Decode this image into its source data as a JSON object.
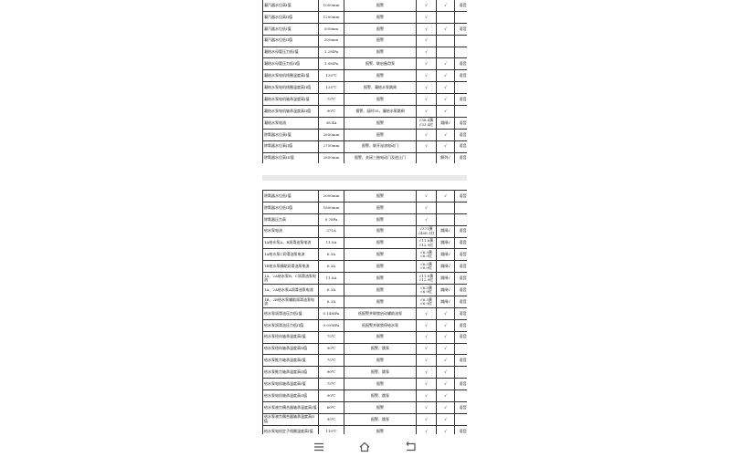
{
  "page1_rows": [
    [
      "凝汽器水位高I值",
      "1000mm",
      "报警",
      "√",
      "√",
      "语音报"
    ],
    [
      "凝汽器水位高II值",
      "1200mm",
      "报警",
      "√",
      "",
      ""
    ],
    [
      "凝汽器水位低I值",
      "500mm",
      "报警",
      "√",
      "√",
      "语音报"
    ],
    [
      "凝汽器水位低II值",
      "300mm",
      "报警",
      "√",
      "",
      ""
    ],
    [
      "凝结水母管压力低I值",
      "1.2MPa",
      "报警",
      "√",
      "",
      ""
    ],
    [
      "凝结水母管压力低II值",
      "1.0MPa",
      "报警、联启备用泵",
      "√",
      "√",
      "语音报"
    ],
    [
      "凝结水泵电机线圈温度高I值",
      "130℃",
      "报警",
      "√",
      "√",
      "语音报"
    ],
    [
      "凝结水泵电机线圈温度高II值",
      "135℃",
      "报警、凝结水泵跳闸",
      "√",
      "√",
      ""
    ],
    [
      "凝结水泵电机轴承温度高I值",
      "75℃",
      "报警",
      "√",
      "√",
      "语音报"
    ],
    [
      "凝结水泵电机轴承温度高II值",
      "90℃",
      "报警、延时5S，凝结水泵跳闸",
      "√",
      "√",
      ""
    ],
    [
      "凝结水泵电流",
      "38.4A",
      "报警",
      "√38.4黄 √33.4红",
      "跳闸√",
      "语音报"
    ],
    [
      "除氧器水位高I值",
      "2650mm",
      "报警",
      "√",
      "√",
      "语音报"
    ],
    [
      "除氧器水位高II值",
      "2750mm",
      "报警、联开溢流电动门",
      "√",
      "√",
      "语音报"
    ],
    [
      "除氧器水位高III值",
      "2850mm",
      "报警、关闭三抽电动门及逆止门",
      "",
      "解列√",
      "语音报"
    ]
  ],
  "page2_rows": [
    [
      "除氧器水位低I值",
      "2000mm",
      "报警",
      "√",
      "√",
      "语音报"
    ],
    [
      "除氧器水位低II值",
      "1800mm",
      "报警",
      "√",
      "",
      ""
    ],
    [
      "除氧器压力高",
      "0.78Pa",
      "报警",
      "√",
      "",
      ""
    ],
    [
      "给水泵电流",
      "371A",
      "报警",
      "√371黄 √408.1红",
      "跳闸√",
      "语音报"
    ],
    [
      "1A给水泵A、B润滑油泵电流",
      "11.8A",
      "报警",
      "√11.8黄 √12.9红",
      "跳闸√",
      "语音报"
    ],
    [
      "1A给水泵C润滑油泵电流",
      "6.3A",
      "报警",
      "√6.3黄 √6.9红",
      "跳闸√",
      "语音报"
    ],
    [
      "1B给水泵辅助润滑油泵电流",
      "6.3A",
      "报警",
      "√6.3黄 √6.9红",
      "跳闸√",
      "语音报"
    ],
    [
      "1A、2A给水泵B、C润滑油泵电流",
      "11.8A",
      "报警",
      "√11.8黄 √12.9红",
      "跳闸√",
      "语音报"
    ],
    [
      "1A、2A给水泵A润滑油泵电流",
      "6.3A",
      "报警",
      "√6.3黄 √6.9红",
      "跳闸√",
      "语音报"
    ],
    [
      "1B、2B给水泵辅助润滑油泵电流",
      "6.3A",
      "报警",
      "√6.3黄 √6.9红",
      "跳闸√",
      "语音报"
    ],
    [
      "给水泵润滑油压力低I值",
      "0.14MPa",
      "低报警并联锁启动辅助油泵",
      "√",
      "√",
      "语音报"
    ],
    [
      "给水泵润滑油压力低II值",
      "0.09MPa",
      "低报警并联锁停给水泵",
      "√",
      "√",
      "语音报"
    ],
    [
      "给水泵径向轴承温度高I值",
      "75℃",
      "报警",
      "√",
      "√",
      "语音报"
    ],
    [
      "给水泵径向轴承温度高II值",
      "90℃",
      "报警、跳泵",
      "√",
      "√",
      ""
    ],
    [
      "给水泵推力轴承温度高I值",
      "75℃",
      "报警",
      "√",
      "√",
      "语音报"
    ],
    [
      "给水泵推力轴承温度高II值",
      "90℃",
      "报警、跳泵",
      "√",
      "√",
      ""
    ],
    [
      "给水泵电机轴承温度高I值",
      "75℃",
      "报警",
      "√",
      "√",
      "语音报"
    ],
    [
      "给水泵电机轴承温度高II值",
      "90℃",
      "报警、跳泵",
      "√",
      "√",
      ""
    ],
    [
      "给水泵液力偶合器轴承温度高I值",
      "60℃",
      "报警",
      "√",
      "√",
      "语音报"
    ],
    [
      "给水泵液力偶合器轴承温度高II值",
      "95℃",
      "报警、跳泵",
      "√",
      "√",
      ""
    ],
    [
      "给水泵电机定子线圈温度高I值",
      "110℃",
      "报警",
      "√",
      "√",
      "语音报"
    ]
  ],
  "navbar": {
    "icons": [
      "menu-icon",
      "home-icon",
      "back-icon"
    ]
  }
}
